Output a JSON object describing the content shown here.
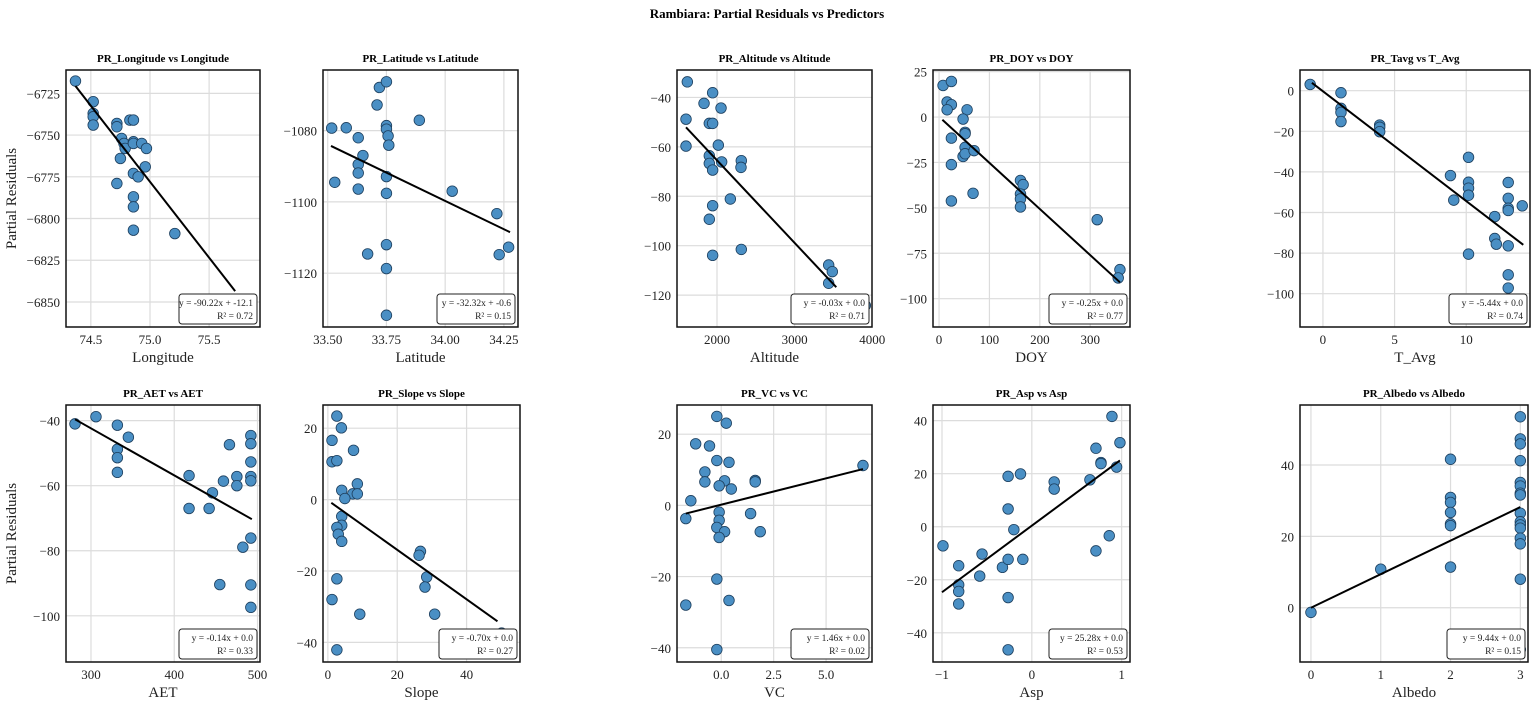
{
  "title": "Rambiara: Partial Residuals vs Predictors",
  "colors": {
    "marker_fill": "#4a8fc4",
    "marker_edge": "#1d3f5e",
    "line": "#000000",
    "grid": "#dcdcdc"
  },
  "chart_data": [
    {
      "type": "scatter",
      "title": "PR_Longitude vs Longitude",
      "xlabel": "Longitude",
      "ylabel": "Partial Residuals",
      "xlim": [
        74.29,
        75.93
      ],
      "ylim": [
        -6865,
        -6711
      ],
      "xticks": [
        74.5,
        75.0,
        75.5
      ],
      "xticklabels": [
        "74.5",
        "75.0",
        "75.5"
      ],
      "yticks": [
        -6725,
        -6750,
        -6775,
        -6800,
        -6825,
        -6850
      ],
      "yticklabels": [
        "−6725",
        "−6750",
        "−6775",
        "−6800",
        "−6825",
        "−6850"
      ],
      "x": [
        74.37,
        74.52,
        74.52,
        74.52,
        74.52,
        74.72,
        74.72,
        74.83,
        74.86,
        74.76,
        74.78,
        74.79,
        74.86,
        74.86,
        74.93,
        74.97,
        74.75,
        74.96,
        74.86,
        74.9,
        74.72,
        74.86,
        74.86,
        74.86,
        75.21,
        75.85
      ],
      "y": [
        -6717.6,
        -6730,
        -6737,
        -6739,
        -6744,
        -6743,
        -6745,
        -6741,
        -6741,
        -6752,
        -6755,
        -6758,
        -6754,
        -6755,
        -6755,
        -6758,
        -6764,
        -6769,
        -6773,
        -6775,
        -6779,
        -6787,
        -6793,
        -6807,
        -6809,
        -6858
      ],
      "fit": {
        "x": [
          74.37,
          75.72
        ],
        "y": [
          -6720.6,
          -6843.5
        ]
      },
      "equation": "y = -90.22x + -12.1",
      "r2": "R² = 0.72"
    },
    {
      "type": "scatter",
      "title": "PR_Latitude vs Latitude",
      "xlabel": "Latitude",
      "ylabel": "",
      "xlim": [
        33.48,
        34.31
      ],
      "ylim": [
        -1135.1,
        -1063
      ],
      "xticks": [
        33.5,
        33.75,
        34.0,
        34.25
      ],
      "xticklabels": [
        "33.50",
        "33.75",
        "34.00",
        "34.25"
      ],
      "yticks": [
        -1080,
        -1100,
        -1120
      ],
      "yticklabels": [
        "−1080",
        "−1100",
        "−1120"
      ],
      "x": [
        33.517,
        33.579,
        33.63,
        33.53,
        33.65,
        33.63,
        33.63,
        33.63,
        33.67,
        33.71,
        33.72,
        33.75,
        33.75,
        33.75,
        33.757,
        33.76,
        33.75,
        33.75,
        33.75,
        33.75,
        33.75,
        33.89,
        34.03,
        34.22,
        34.23,
        34.27
      ],
      "y": [
        -1079.3,
        -1079.2,
        -1082,
        -1094.5,
        -1087,
        -1089.5,
        -1091.9,
        -1096.4,
        -1114.6,
        -1072.8,
        -1067.9,
        -1066.3,
        -1078.6,
        -1079.6,
        -1081.5,
        -1084.1,
        -1092.9,
        -1097.6,
        -1112,
        -1118.7,
        -1131.8,
        -1077.1,
        -1097,
        -1103.3,
        -1114.8,
        -1112.7
      ],
      "fit": {
        "x": [
          33.514,
          34.276
        ],
        "y": [
          -1084.3,
          -1108.5
        ]
      },
      "equation": "y = -32.32x + -0.6",
      "r2": "R² = 0.15"
    },
    {
      "type": "scatter",
      "title": "PR_Altitude vs Altitude",
      "xlabel": "Altitude",
      "ylabel": "",
      "xlim": [
        1485,
        3996
      ],
      "ylim": [
        -132.9,
        -28.9
      ],
      "xticks": [
        2000,
        3000,
        4000
      ],
      "xticklabels": [
        "2000",
        "3000",
        "4000"
      ],
      "yticks": [
        -40,
        -60,
        -80,
        -100,
        -120
      ],
      "yticklabels": [
        "−40",
        "−60",
        "−80",
        "−100",
        "−120"
      ],
      "x": [
        1618,
        1601,
        1601,
        1833,
        1901,
        1944,
        1944,
        2052,
        2017,
        1901,
        1901,
        1944,
        2060,
        1944,
        1901,
        1944,
        2172,
        2313,
        2309,
        2313,
        3438,
        3485,
        3438,
        3494,
        3910
      ],
      "y": [
        -33.7,
        -48.8,
        -59.7,
        -42.4,
        -50.5,
        -50.5,
        -38.1,
        -44.3,
        -59.3,
        -63.6,
        -66.7,
        -69.4,
        -66.1,
        -83.8,
        -89.3,
        -103.9,
        -81.1,
        -65.6,
        -68.3,
        -101.5,
        -107.8,
        -110.5,
        -115.2,
        -124.6,
        -124.2
      ],
      "fit": {
        "x": [
          1601,
          3536
        ],
        "y": [
          -52.1,
          -116.8
        ]
      },
      "equation": "y = -0.03x + 0.0",
      "r2": "R² = 0.71"
    },
    {
      "type": "scatter",
      "title": "PR_DOY vs DOY",
      "xlabel": "DOY",
      "ylabel": "",
      "xlim": [
        -12,
        379
      ],
      "ylim": [
        -115.6,
        25.9
      ],
      "xticks": [
        0,
        100,
        200,
        300
      ],
      "xticklabels": [
        "0",
        "100",
        "200",
        "300"
      ],
      "yticks": [
        25,
        0,
        -25,
        -50,
        -75,
        -100
      ],
      "yticklabels": [
        "25",
        "0",
        "−25",
        "−50",
        "−75",
        "−100"
      ],
      "x": [
        8,
        24.5,
        16,
        24.5,
        16,
        55.6,
        47.7,
        51.7,
        51.7,
        24.5,
        51.7,
        47.7,
        51.7,
        69.5,
        24.5,
        24.5,
        67.5,
        161.6,
        166.9,
        161.6,
        161.6,
        161.6,
        313.9,
        359,
        355.6,
        324.5
      ],
      "y": [
        17.4,
        19.6,
        8.3,
        6.8,
        4,
        4,
        -1.1,
        -8.4,
        -9.2,
        -11.6,
        -16.7,
        -21.7,
        -20.2,
        -18.5,
        -26.2,
        -46.2,
        -42,
        -34.9,
        -37.2,
        -42.4,
        -45.1,
        -49.5,
        -56.5,
        -84,
        -88.6,
        -109.7
      ],
      "fit": {
        "x": [
          6.6,
          359
        ],
        "y": [
          -1.5,
          -91
        ]
      },
      "equation": "y = -0.25x + 0.0",
      "r2": "R² = 0.77"
    },
    {
      "type": "scatter",
      "title": "PR_Tavg vs T_Avg",
      "xlabel": "T_Avg",
      "ylabel": "",
      "xlim": [
        -1.6,
        14.45
      ],
      "ylim": [
        -116.4,
        10.2
      ],
      "xticks": [
        0,
        5,
        10
      ],
      "xticklabels": [
        "0",
        "5",
        "10"
      ],
      "yticks": [
        0,
        -20,
        -40,
        -60,
        -80,
        -100
      ],
      "yticklabels": [
        "0",
        "−20",
        "−40",
        "−60",
        "−80",
        "−100"
      ],
      "x": [
        -0.89,
        1.26,
        1.26,
        1.26,
        1.26,
        3.96,
        3.96,
        3.96,
        10.16,
        8.9,
        9.13,
        10.16,
        10.16,
        10.16,
        10.16,
        11.99,
        11.99,
        12.1,
        12.93,
        12.93,
        12.93,
        12.93,
        13.91,
        12.93,
        12.93,
        12.93,
        12.93
      ],
      "y": [
        3.1,
        -1,
        -8.7,
        -10.7,
        -15.2,
        -16.9,
        -18,
        -20.2,
        -32.8,
        -41.8,
        -53.9,
        -45.1,
        -48,
        -51.5,
        -80.5,
        -62,
        -72.8,
        -75.6,
        -45.2,
        -53,
        -57.9,
        -59,
        -56.7,
        -76.4,
        -90.7,
        -97.2,
        -110.8
      ],
      "fit": {
        "x": [
          -0.77,
          13.98
        ],
        "y": [
          3.9,
          -75.9
        ]
      },
      "equation": "y = -5.44x + 0.0",
      "r2": "R² = 0.74"
    },
    {
      "type": "scatter",
      "title": "PR_AET vs AET",
      "xlabel": "AET",
      "ylabel": "Partial Residuals",
      "xlim": [
        270,
        503
      ],
      "ylim": [
        -114.2,
        -35.2
      ],
      "xticks": [
        300,
        400,
        500
      ],
      "xticklabels": [
        "300",
        "400",
        "500"
      ],
      "yticks": [
        -40,
        -60,
        -80,
        -100
      ],
      "yticklabels": [
        "−40",
        "−60",
        "−80",
        "−100"
      ],
      "x": [
        280.8,
        306,
        331.7,
        331.7,
        331.7,
        331.7,
        344.9,
        417.8,
        417.8,
        441.9,
        445.9,
        459.1,
        466.3,
        475.2,
        475.2,
        482.4,
        454.7,
        492,
        492,
        492,
        492,
        492,
        492,
        492,
        492,
        492
      ],
      "y": [
        -41,
        -38.8,
        -41.4,
        -48.8,
        -51.4,
        -55.9,
        -45.1,
        -56.9,
        -67,
        -67,
        -62.2,
        -58.6,
        -47.4,
        -57.2,
        -60,
        -78.9,
        -90.4,
        -44.6,
        -47.1,
        -52.7,
        -57.2,
        -58.5,
        -76.1,
        -90.5,
        -97.4,
        -110.4
      ],
      "fit": {
        "x": [
          280.8,
          493.2
        ],
        "y": [
          -39.6,
          -70.3
        ]
      },
      "equation": "y = -0.14x + 0.0",
      "r2": "R² = 0.33"
    },
    {
      "type": "scatter",
      "title": "PR_Slope vs Slope",
      "xlabel": "Slope",
      "ylabel": "",
      "xlim": [
        -1.4,
        55.4
      ],
      "ylim": [
        -45.5,
        26.5
      ],
      "xticks": [
        0,
        20,
        40
      ],
      "xticklabels": [
        "0",
        "20",
        "40"
      ],
      "yticks": [
        20,
        0,
        -20,
        -40
      ],
      "yticklabels": [
        "20",
        "0",
        "−20",
        "−40"
      ],
      "x": [
        2.6,
        3.9,
        1.2,
        1.2,
        2.6,
        7.4,
        4,
        8.5,
        7.2,
        8.5,
        4.9,
        4,
        4,
        2.6,
        3,
        4,
        2.6,
        1.2,
        9.2,
        2.6,
        26.7,
        26.3,
        28.5,
        28,
        30.8,
        50.1
      ],
      "y": [
        23.4,
        20.1,
        16.6,
        10.6,
        10.9,
        13.8,
        2.6,
        4.4,
        1.6,
        1.6,
        0.3,
        -4.7,
        -7.2,
        -7.8,
        -9.7,
        -11.7,
        -22.2,
        -28,
        -32.1,
        -42.1,
        -14.5,
        -15.6,
        -21.7,
        -24.5,
        -32.1,
        -37.4
      ],
      "fit": {
        "x": [
          1,
          48.9
        ],
        "y": [
          -0.9,
          -34.1
        ]
      },
      "equation": "y = -0.70x + 0.0",
      "r2": "R² = 0.27"
    },
    {
      "type": "scatter",
      "title": "PR_VC vs VC",
      "xlabel": "VC",
      "ylabel": "",
      "xlim": [
        -2.11,
        7.19
      ],
      "ylim": [
        -44,
        28.2
      ],
      "xticks": [
        0,
        2.5,
        5
      ],
      "xticklabels": [
        "0.0",
        "2.5",
        "5.0"
      ],
      "yticks": [
        20,
        0,
        -20,
        -40
      ],
      "yticklabels": [
        "20",
        "0",
        "−20",
        "−40"
      ],
      "x": [
        -0.21,
        0.24,
        -1.22,
        -0.56,
        -0.21,
        0.37,
        -0.78,
        -0.78,
        0.16,
        -0.1,
        0.48,
        1.62,
        1.62,
        -1.45,
        -1.69,
        -0.1,
        -0.1,
        -0.21,
        0.16,
        -0.1,
        1.4,
        1.86,
        -0.21,
        0.37,
        -1.69,
        -0.21,
        6.76
      ],
      "y": [
        25,
        23.1,
        17.3,
        16.7,
        12.6,
        12.1,
        9.4,
        6.6,
        6.9,
        5.5,
        4.6,
        7,
        6.6,
        1.3,
        -3.7,
        -1.9,
        -4.2,
        -6.2,
        -7.4,
        -9,
        -2.3,
        -7.4,
        -20.7,
        -26.7,
        -28,
        -40.5,
        11.2
      ],
      "fit": {
        "x": [
          -1.69,
          6.76
        ],
        "y": [
          -2.3,
          10.2
        ]
      },
      "equation": "y = 1.46x + 0.0",
      "r2": "R² = 0.02"
    },
    {
      "type": "scatter",
      "title": "PR_Asp vs Asp",
      "xlabel": "Asp",
      "ylabel": "",
      "xlim": [
        -1.1,
        1.093
      ],
      "ylim": [
        -51,
        45.9
      ],
      "xticks": [
        -1,
        0,
        1
      ],
      "xticklabels": [
        "−1",
        "0",
        "1"
      ],
      "yticks": [
        40,
        20,
        0,
        -20,
        -40
      ],
      "yticklabels": [
        "40",
        "20",
        "0",
        "−20",
        "−40"
      ],
      "x": [
        -0.989,
        -0.814,
        -0.814,
        -0.814,
        -0.814,
        -0.554,
        -0.58,
        -0.327,
        -0.264,
        -0.126,
        -0.264,
        -0.2,
        -0.264,
        -0.1,
        -0.264,
        -0.264,
        0.249,
        0.249,
        0.647,
        0.714,
        0.77,
        0.77,
        0.892,
        0.981,
        0.944,
        0.862,
        0.714
      ],
      "y": [
        -7.2,
        -14.7,
        -21.9,
        -24.4,
        -29.1,
        -10.3,
        -18.6,
        -15.3,
        19,
        19.9,
        6.7,
        -1.1,
        -12.3,
        -12.3,
        -26.7,
        -46.4,
        16.9,
        14.2,
        17.7,
        29.6,
        24.2,
        23.8,
        41.6,
        31.7,
        22.5,
        -3.4,
        -9.1
      ],
      "fit": {
        "x": [
          -1,
          0.981
        ],
        "y": [
          -24.7,
          25
        ]
      },
      "equation": "y = 25.28x + 0.0",
      "r2": "R² = 0.53"
    },
    {
      "type": "scatter",
      "title": "PR_Albedo vs Albedo",
      "xlabel": "Albedo",
      "ylabel": "",
      "xlim": [
        -0.157,
        3.11
      ],
      "ylim": [
        -15.2,
        56.8
      ],
      "xticks": [
        0,
        1,
        2,
        3
      ],
      "xticklabels": [
        "0",
        "1",
        "2",
        "3"
      ],
      "yticks": [
        40,
        20,
        0
      ],
      "yticklabels": [
        "40",
        "20",
        "0"
      ],
      "x": [
        0,
        1,
        2,
        2,
        2,
        2,
        2,
        2,
        2,
        3,
        3,
        3,
        3,
        3,
        3,
        3,
        3,
        3,
        3,
        3,
        3,
        3,
        3,
        3,
        3
      ],
      "y": [
        -1.3,
        10.8,
        41.6,
        30.9,
        29.5,
        26.7,
        23.5,
        23,
        11.4,
        53.5,
        47.3,
        45.9,
        41.2,
        35.1,
        34.1,
        32.1,
        31.6,
        26.5,
        24.1,
        23.2,
        22.3,
        19.5,
        17.9,
        8,
        -11.7
      ],
      "fit": {
        "x": [
          0,
          3
        ],
        "y": [
          0,
          28.2
        ]
      },
      "equation": "y = 9.44x + 0.0",
      "r2": "R² = 0.15"
    }
  ]
}
